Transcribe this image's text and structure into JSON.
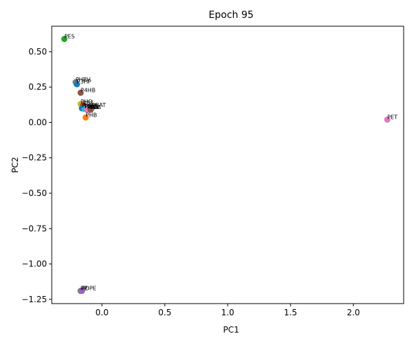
{
  "chart_data": {
    "type": "scatter",
    "title": "Epoch 95",
    "xlabel": "PC1",
    "ylabel": "PC2",
    "xlim": [
      -0.4,
      2.4
    ],
    "ylim": [
      -1.28,
      0.68
    ],
    "xticks": [
      0.0,
      0.5,
      1.0,
      1.5,
      2.0
    ],
    "xtick_labels": [
      "0.0",
      "0.5",
      "1.0",
      "1.5",
      "2.0"
    ],
    "yticks": [
      0.5,
      0.25,
      0.0,
      -0.25,
      -0.5,
      -0.75,
      -1.0,
      -1.25
    ],
    "ytick_labels": [
      "0.50",
      "0.25",
      "0.00",
      "−0.25",
      "−0.50",
      "−0.75",
      "−1.00",
      "−1.25"
    ],
    "grid": false,
    "points": [
      {
        "label": "PES",
        "x": -0.3,
        "y": 0.59,
        "color": "#2ca02c"
      },
      {
        "label": "PHBV",
        "x": -0.21,
        "y": 0.285,
        "color": "#7f7f7f"
      },
      {
        "label": "P3HP",
        "x": -0.2,
        "y": 0.27,
        "color": "#1f77b4"
      },
      {
        "label": "P4HB",
        "x": -0.17,
        "y": 0.21,
        "color": "#8c564b"
      },
      {
        "label": "PHO",
        "x": -0.17,
        "y": 0.13,
        "color": "#bcbd22"
      },
      {
        "label": "PBS",
        "x": -0.15,
        "y": 0.12,
        "color": "#d62728"
      },
      {
        "label": "PMBA",
        "x": -0.16,
        "y": 0.1,
        "color": "#1f77b4"
      },
      {
        "label": "PBSA",
        "x": -0.14,
        "y": 0.095,
        "color": "#17becf"
      },
      {
        "label": "PBAT",
        "x": -0.08,
        "y": 0.105,
        "color": "#7f7f7f"
      },
      {
        "label": "PCL",
        "x": -0.1,
        "y": 0.09,
        "color": "#9467bd"
      },
      {
        "label": "PEA",
        "x": -0.12,
        "y": 0.09,
        "color": "#e377c2"
      },
      {
        "label": "PLA",
        "x": -0.09,
        "y": 0.09,
        "color": "#8c564b"
      },
      {
        "label": "PHB",
        "x": -0.13,
        "y": 0.035,
        "color": "#ff7f0e"
      },
      {
        "label": "PET",
        "x": 2.27,
        "y": 0.02,
        "color": "#e377c2"
      },
      {
        "label": "PE",
        "x": -0.17,
        "y": -1.19,
        "color": "#9467bd"
      },
      {
        "label": "PP",
        "x": -0.17,
        "y": -1.19,
        "color": "#7f7f7f"
      },
      {
        "label": "PDPE",
        "x": -0.16,
        "y": -1.19,
        "color": "#9467bd"
      }
    ]
  }
}
